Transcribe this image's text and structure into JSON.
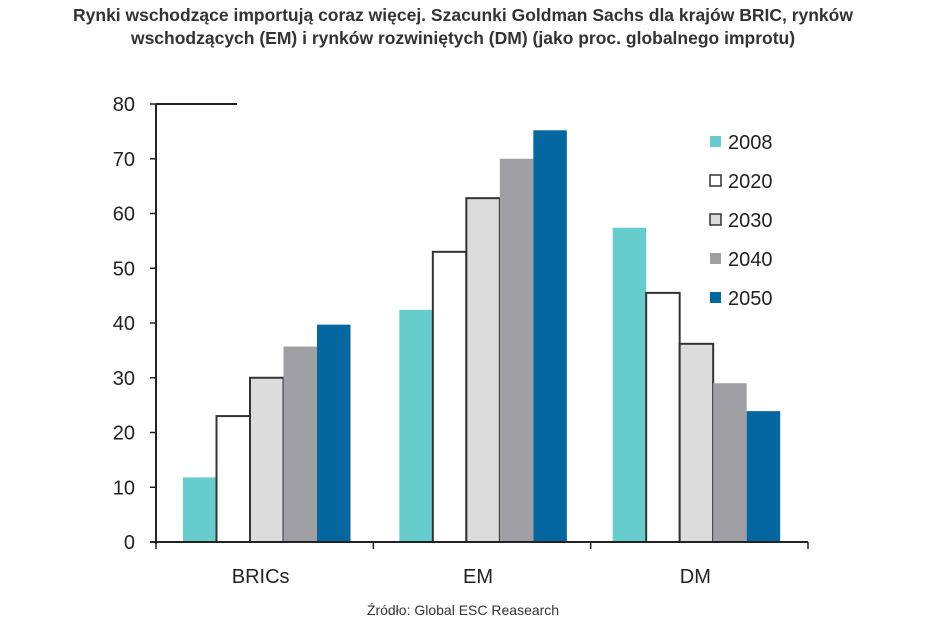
{
  "title": {
    "line1": "Rynki wschodzące importują coraz więcej. Szacunki Goldman Sachs dla krajów BRIC, rynków",
    "line2": "wschodzących (EM) i rynków rozwiniętych (DM) (jako proc. globalnego improtu)"
  },
  "source": "Źródło: Global ESC Reasearch",
  "chart_data": {
    "type": "bar",
    "title": "Rynki wschodzące importują coraz więcej. Szacunki Goldman Sachs dla krajów BRIC, rynków wschodzących (EM) i rynków rozwiniętych (DM) (jako proc. globalnego improtu)",
    "xlabel": "",
    "ylabel": "",
    "categories": [
      "BRICs",
      "EM",
      "DM"
    ],
    "series": [
      {
        "name": "2008",
        "color": "#66CCCC",
        "outlined": false,
        "values": [
          11.8,
          42.4,
          57.4
        ]
      },
      {
        "name": "2020",
        "color": "#FFFFFF",
        "outlined": true,
        "values": [
          23.0,
          53.0,
          45.5
        ]
      },
      {
        "name": "2030",
        "color": "#DCDCDC",
        "outlined": true,
        "values": [
          30.0,
          62.8,
          36.2
        ]
      },
      {
        "name": "2040",
        "color": "#A0A0A4",
        "outlined": false,
        "values": [
          35.7,
          70.0,
          29.0
        ]
      },
      {
        "name": "2050",
        "color": "#05679F",
        "outlined": false,
        "values": [
          39.7,
          75.2,
          23.9
        ]
      }
    ],
    "yticks": [
      0,
      10,
      20,
      30,
      40,
      50,
      60,
      70,
      80
    ],
    "ylim": [
      0,
      80
    ],
    "grid": false,
    "legend_position": "upper right inside"
  }
}
